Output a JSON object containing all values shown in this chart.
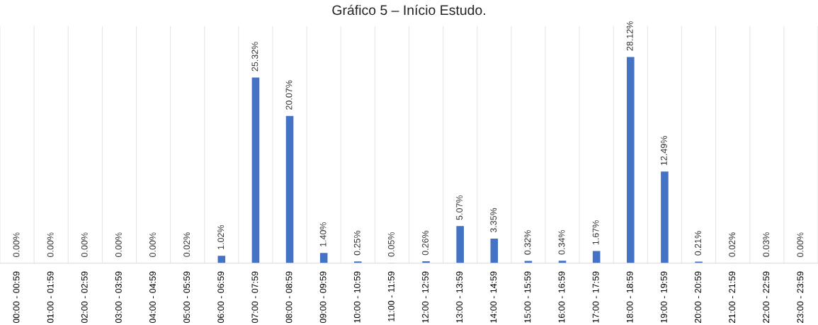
{
  "chart_data": {
    "type": "bar",
    "title": "Gráfico 5 – Início Estudo.",
    "categories": [
      "00:00 - 00:59",
      "01:00 - 01:59",
      "02:00 - 02:59",
      "03:00 - 03:59",
      "04:00 - 04:59",
      "05:00 - 05:59",
      "06:00 - 06:59",
      "07:00 - 07:59",
      "08:00 - 08:59",
      "09:00 - 09:59",
      "10:00 - 10:59",
      "11:00 - 11:59",
      "12:00 - 12:59",
      "13:00 - 13:59",
      "14:00 - 14:59",
      "15:00 - 15:59",
      "16:00 - 16:59",
      "17:00 - 17:59",
      "18:00 - 18:59",
      "19:00 - 19:59",
      "20:00 - 20:59",
      "21:00 - 21:59",
      "22:00 - 22:59",
      "23:00 - 23:59"
    ],
    "values": [
      0.0,
      0.0,
      0.0,
      0.0,
      0.0,
      0.02,
      1.02,
      25.32,
      20.07,
      1.4,
      0.25,
      0.05,
      0.26,
      5.07,
      3.35,
      0.32,
      0.34,
      1.67,
      28.12,
      12.49,
      0.21,
      0.02,
      0.03,
      0.0
    ],
    "value_labels": [
      "0.00%",
      "0.00%",
      "0.00%",
      "0.00%",
      "0.00%",
      "0.02%",
      "1.02%",
      "25.32%",
      "20.07%",
      "1.40%",
      "0.25%",
      "0.05%",
      "0.26%",
      "5.07%",
      "3.35%",
      "0.32%",
      "0.34%",
      "1.67%",
      "28.12%",
      "12.49%",
      "0.21%",
      "0.02%",
      "0.03%",
      "0.00%"
    ],
    "color": "#4472c4",
    "grid": "x"
  }
}
